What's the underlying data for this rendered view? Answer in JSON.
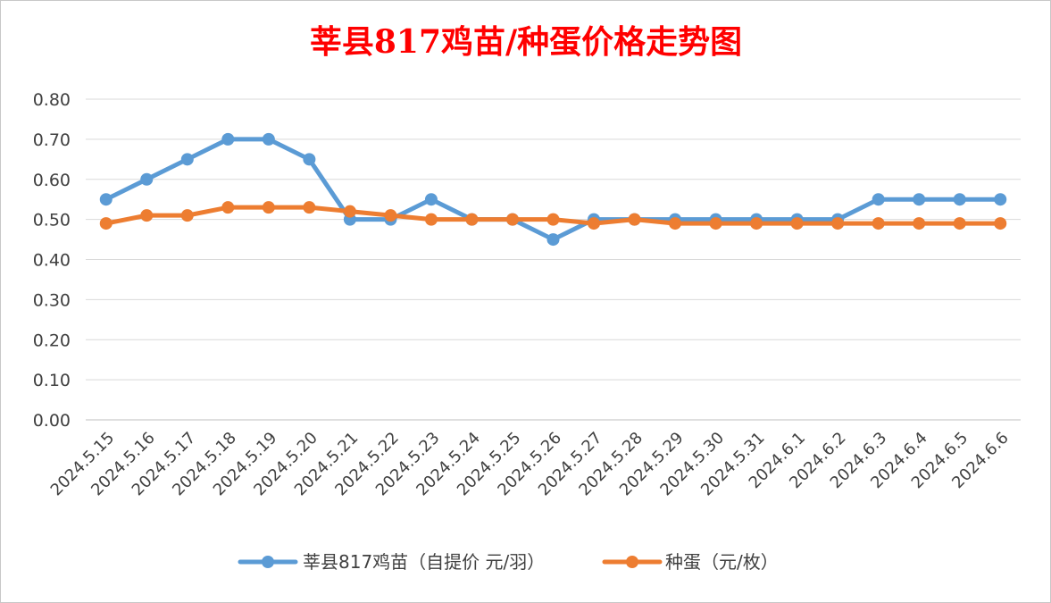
{
  "chart_data": {
    "type": "line",
    "title": "莘县817鸡苗/种蛋价格走势图",
    "categories": [
      "2024.5.15",
      "2024.5.16",
      "2024.5.17",
      "2024.5.18",
      "2024.5.19",
      "2024.5.20",
      "2024.5.21",
      "2024.5.22",
      "2024.5.23",
      "2024.5.24",
      "2024.5.25",
      "2024.5.26",
      "2024.5.27",
      "2024.5.28",
      "2024.5.29",
      "2024.5.30",
      "2024.5.31",
      "2024.6.1",
      "2024.6.2",
      "2024.6.3",
      "2024.6.4",
      "2024.6.5",
      "2024.6.6"
    ],
    "series": [
      {
        "name": "莘县817鸡苗（自提价 元/羽）",
        "color": "#5b9bd5",
        "values": [
          0.55,
          0.6,
          0.65,
          0.7,
          0.7,
          0.65,
          0.5,
          0.5,
          0.55,
          0.5,
          0.5,
          0.45,
          0.5,
          0.5,
          0.5,
          0.5,
          0.5,
          0.5,
          0.5,
          0.55,
          0.55,
          0.55,
          0.55
        ]
      },
      {
        "name": "种蛋（元/枚）",
        "color": "#ed7d31",
        "values": [
          0.49,
          0.51,
          0.51,
          0.53,
          0.53,
          0.53,
          0.52,
          0.51,
          0.5,
          0.5,
          0.5,
          0.5,
          0.49,
          0.5,
          0.49,
          0.49,
          0.49,
          0.49,
          0.49,
          0.49,
          0.49,
          0.49,
          0.49
        ]
      }
    ],
    "ylim": [
      0,
      0.8
    ],
    "yticks": [
      "0.00",
      "0.10",
      "0.20",
      "0.30",
      "0.40",
      "0.50",
      "0.60",
      "0.70",
      "0.80"
    ],
    "grid": true,
    "legend_position": "bottom"
  }
}
